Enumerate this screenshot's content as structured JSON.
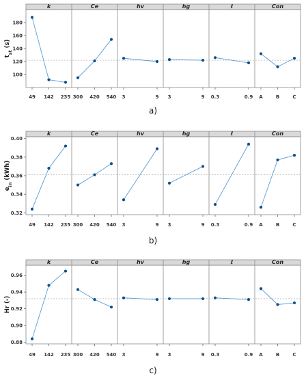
{
  "chart_data": [
    {
      "type": "line",
      "caption": "a)",
      "ylabel": "t_st (s)",
      "ylim": [
        80,
        200
      ],
      "yticks": [
        "100",
        "120",
        "140",
        "160",
        "180"
      ],
      "yticks_values": [
        100,
        120,
        140,
        160,
        180
      ],
      "mean": 122,
      "grid": false,
      "panels": [
        {
          "title": "k",
          "categories": [
            "49",
            "142",
            "235"
          ],
          "values": [
            188,
            92,
            88
          ]
        },
        {
          "title": "Ce",
          "categories": [
            "300",
            "420",
            "540"
          ],
          "values": [
            95,
            121,
            154
          ]
        },
        {
          "title": "hv",
          "categories": [
            "3",
            "9"
          ],
          "values": [
            125,
            120
          ]
        },
        {
          "title": "hg",
          "categories": [
            "3",
            "9"
          ],
          "values": [
            123,
            122
          ]
        },
        {
          "title": "ℓ",
          "categories": [
            "0.3",
            "0.9"
          ],
          "values": [
            126,
            118
          ]
        },
        {
          "title": "Con",
          "categories": [
            "A",
            "B",
            "C"
          ],
          "values": [
            132,
            112,
            125
          ]
        }
      ]
    },
    {
      "type": "line",
      "caption": "b)",
      "ylabel": "e_in (kWh)",
      "ylim": [
        0.318,
        0.402
      ],
      "yticks": [
        "0.32",
        "0.34",
        "0.36",
        "0.38",
        "0.40"
      ],
      "yticks_values": [
        0.32,
        0.34,
        0.36,
        0.38,
        0.4
      ],
      "mean": 0.361,
      "grid": false,
      "panels": [
        {
          "title": "k",
          "categories": [
            "49",
            "142",
            "235"
          ],
          "values": [
            0.324,
            0.368,
            0.392
          ]
        },
        {
          "title": "Ce",
          "categories": [
            "300",
            "420",
            "540"
          ],
          "values": [
            0.35,
            0.361,
            0.373
          ]
        },
        {
          "title": "hv",
          "categories": [
            "3",
            "9"
          ],
          "values": [
            0.334,
            0.389
          ]
        },
        {
          "title": "hg",
          "categories": [
            "3",
            "9"
          ],
          "values": [
            0.352,
            0.37
          ]
        },
        {
          "title": "ℓ",
          "categories": [
            "0.3",
            "0.9"
          ],
          "values": [
            0.329,
            0.394
          ]
        },
        {
          "title": "Con",
          "categories": [
            "A",
            "B",
            "C"
          ],
          "values": [
            0.326,
            0.377,
            0.382
          ]
        }
      ]
    },
    {
      "type": "line",
      "caption": "c)",
      "ylabel": "Hr (-)",
      "ylim": [
        0.878,
        0.972
      ],
      "yticks": [
        "0.88",
        "0.90",
        "0.92",
        "0.94",
        "0.96"
      ],
      "yticks_values": [
        0.88,
        0.9,
        0.92,
        0.94,
        0.96
      ],
      "mean": 0.932,
      "grid": false,
      "panels": [
        {
          "title": "k",
          "categories": [
            "49",
            "142",
            "235"
          ],
          "values": [
            0.884,
            0.948,
            0.965
          ]
        },
        {
          "title": "Ce",
          "categories": [
            "300",
            "420",
            "540"
          ],
          "values": [
            0.943,
            0.931,
            0.922
          ]
        },
        {
          "title": "hv",
          "categories": [
            "3",
            "9"
          ],
          "values": [
            0.933,
            0.931
          ]
        },
        {
          "title": "hg",
          "categories": [
            "3",
            "9"
          ],
          "values": [
            0.932,
            0.932
          ]
        },
        {
          "title": "ℓ",
          "categories": [
            "0.3",
            "0.9"
          ],
          "values": [
            0.933,
            0.931
          ]
        },
        {
          "title": "Con",
          "categories": [
            "A",
            "B",
            "C"
          ],
          "values": [
            0.944,
            0.925,
            0.927
          ]
        }
      ]
    }
  ],
  "colors": {
    "line": "#5b9bd5",
    "marker": "#0b4f8a",
    "mean_line": "#b8b8b8",
    "header_fill": "#d9d9d9",
    "frame": "#8a8a8a"
  }
}
